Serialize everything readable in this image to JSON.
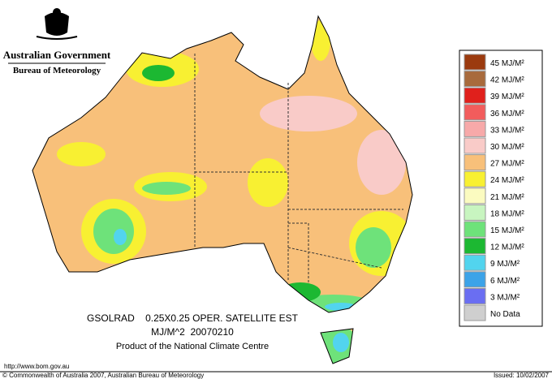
{
  "header": {
    "government": "Australian Government",
    "bureau": "Bureau of Meteorology"
  },
  "legend": {
    "items": [
      {
        "label": "45 MJ/M²",
        "color": "#9b3a0e"
      },
      {
        "label": "42 MJ/M²",
        "color": "#a86a3c"
      },
      {
        "label": "39 MJ/M²",
        "color": "#e0201c"
      },
      {
        "label": "36 MJ/M²",
        "color": "#f25c5c"
      },
      {
        "label": "33 MJ/M²",
        "color": "#f7a9a9"
      },
      {
        "label": "30 MJ/M²",
        "color": "#f9cbc8"
      },
      {
        "label": "27 MJ/M²",
        "color": "#f8c07a"
      },
      {
        "label": "24 MJ/M²",
        "color": "#f8f032"
      },
      {
        "label": "21 MJ/M²",
        "color": "#fbfbc0"
      },
      {
        "label": "18 MJ/M²",
        "color": "#c8f5c0"
      },
      {
        "label": "15 MJ/M²",
        "color": "#6ee27a"
      },
      {
        "label": "12 MJ/M²",
        "color": "#1cb832"
      },
      {
        "label": "9 MJ/M²",
        "color": "#52d4ee"
      },
      {
        "label": "6 MJ/M²",
        "color": "#3ca3e8"
      },
      {
        "label": "3 MJ/M²",
        "color": "#6a6ef2"
      },
      {
        "label": "No Data",
        "color": "#cfcfcf"
      }
    ]
  },
  "caption": {
    "product": "GSOLRAD    0.25X0.25 OPER. SATELLITE EST",
    "units_date": "MJ/M^2  20070210",
    "centre": "Product of the National Climate Centre"
  },
  "footer": {
    "url": "http://www.bom.gov.au",
    "copyright": "© Commonwealth of Australia 2007, Australian Bureau of Meteorology",
    "issued": "Issued: 10/02/2007"
  }
}
